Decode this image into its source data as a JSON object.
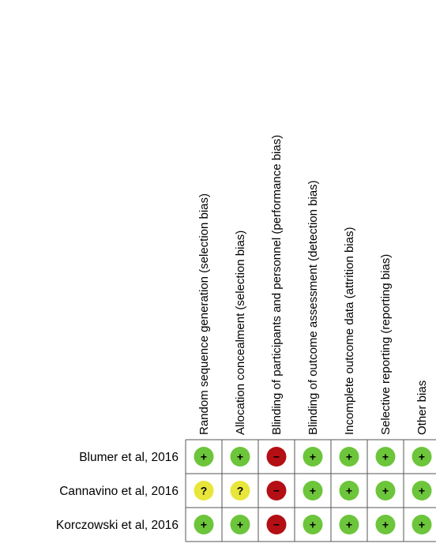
{
  "columns": [
    "Random sequence generation (selection bias)",
    "Allocation concealment (selection bias)",
    "Blinding of participants and personnel (performance bias)",
    "Blinding of outcome assessment (detection bias)",
    "Incomplete outcome data (attrition bias)",
    "Selective reporting (reporting bias)",
    "Other bias"
  ],
  "rows": [
    {
      "study": "Blumer et al, 2016",
      "ratings": [
        "low",
        "low",
        "high",
        "low",
        "low",
        "low",
        "low"
      ]
    },
    {
      "study": "Cannavino et al, 2016",
      "ratings": [
        "unclear",
        "unclear",
        "high",
        "low",
        "low",
        "low",
        "low"
      ]
    },
    {
      "study": "Korczowski et al, 2016",
      "ratings": [
        "low",
        "low",
        "high",
        "low",
        "low",
        "low",
        "low"
      ]
    }
  ],
  "legend": {
    "low": {
      "symbol": "+",
      "color": "#6cc53a",
      "text_color": "#000000"
    },
    "unclear": {
      "symbol": "?",
      "color": "#e8e63a",
      "text_color": "#000000"
    },
    "high": {
      "symbol": "−",
      "color": "#b40f14",
      "text_color": "#000000"
    }
  },
  "grid_color": "#555555"
}
